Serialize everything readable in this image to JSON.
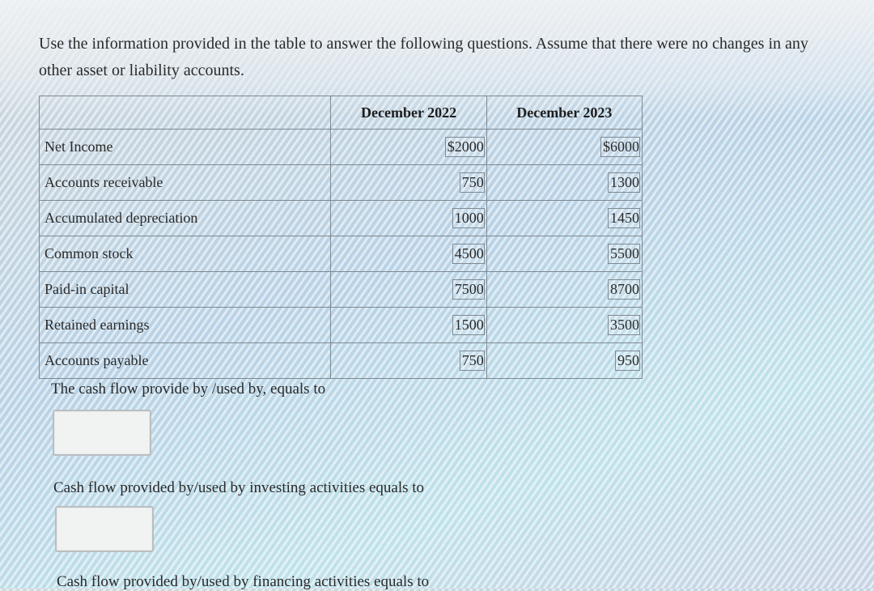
{
  "question": {
    "text": "Use the information provided in the table to answer the following questions. Assume that there were no changes in any other asset or liability accounts."
  },
  "table": {
    "headers": [
      "",
      "December 2022",
      "December 2023"
    ],
    "rows": [
      {
        "label": "Net Income",
        "dec2022": "$2000",
        "dec2023": "$6000"
      },
      {
        "label": "Accounts receivable",
        "dec2022": "750",
        "dec2023": "1300"
      },
      {
        "label": "Accumulated depreciation",
        "dec2022": "1000",
        "dec2023": "1450"
      },
      {
        "label": "Common stock",
        "dec2022": "4500",
        "dec2023": "5500"
      },
      {
        "label": "Paid-in capital",
        "dec2022": "7500",
        "dec2023": "8700"
      },
      {
        "label": "Retained earnings",
        "dec2022": "1500",
        "dec2023": "3500"
      },
      {
        "label": "Accounts payable",
        "dec2022": "750",
        "dec2023": "950"
      }
    ]
  },
  "prompts": {
    "operating": "The cash flow provide by /used by, equals to",
    "investing": "Cash flow provided by/used by investing activities equals to",
    "financing": "Cash flow provided by/used by financing activities equals to"
  },
  "answers": {
    "operating_value": "",
    "investing_value": ""
  }
}
